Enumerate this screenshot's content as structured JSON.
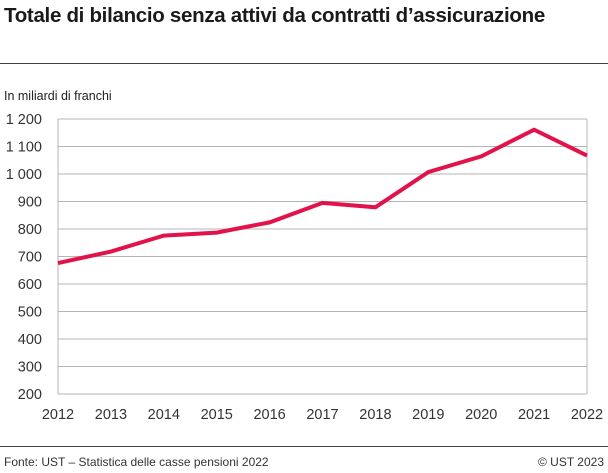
{
  "title": "Totale di bilancio senza attivi da contratti d’assicurazione",
  "chart_data": {
    "type": "line",
    "title": "Totale di bilancio senza attivi da contratti d’assicurazione",
    "ylabel": "In miliardi di franchi",
    "xlabel": "",
    "x": [
      2012,
      2013,
      2014,
      2015,
      2016,
      2017,
      2018,
      2019,
      2020,
      2021,
      2022
    ],
    "series": [
      {
        "values": [
          676,
          718,
          776,
          787,
          824,
          895,
          879,
          1007,
          1064,
          1161,
          1067
        ],
        "color": "#e2124a"
      }
    ],
    "ylim": [
      200,
      1200
    ],
    "yticks": [
      200,
      300,
      400,
      500,
      600,
      700,
      800,
      900,
      1000,
      1100,
      1200
    ],
    "ytick_labels": [
      "200",
      "300",
      "400",
      "500",
      "600",
      "700",
      "800",
      "900",
      "1 000",
      "1 100",
      "1 200"
    ],
    "grid": true
  },
  "footer": {
    "source": "Fonte: UST – Statistica delle casse pensioni 2022",
    "copyright": "© UST 2023"
  }
}
